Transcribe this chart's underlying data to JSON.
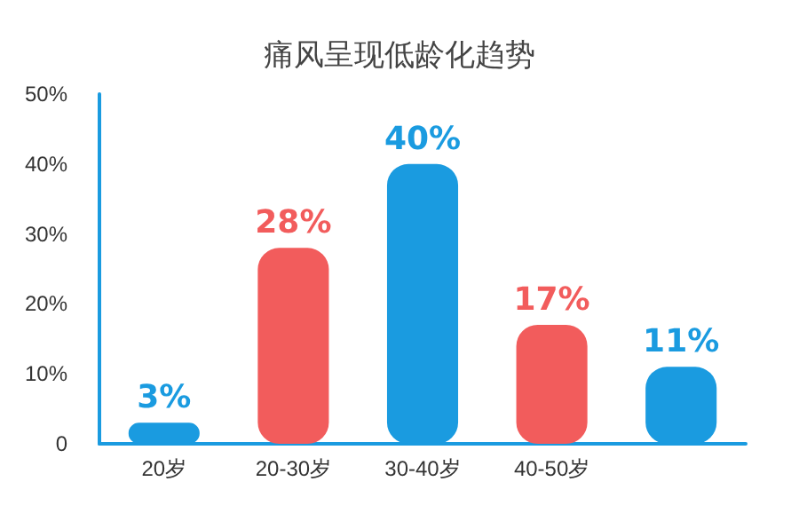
{
  "chart_data": {
    "type": "bar",
    "title": "痛风呈现低龄化趋势",
    "categories": [
      "20岁",
      "20-30岁",
      "30-40岁",
      "40-50岁",
      null
    ],
    "values": [
      3,
      28,
      40,
      17,
      11
    ],
    "colors": [
      "#1a9be0",
      "#f25c5c",
      "#1a9be0",
      "#f25c5c",
      "#1a9be0"
    ],
    "value_labels": [
      "3%",
      "28%",
      "40%",
      "17%",
      "11%"
    ],
    "ylim": [
      0,
      50
    ],
    "yticks": [
      {
        "value": 0,
        "label": "0"
      },
      {
        "value": 10,
        "label": "10%"
      },
      {
        "value": 20,
        "label": "20%"
      },
      {
        "value": 30,
        "label": "30%"
      },
      {
        "value": 40,
        "label": "40%"
      },
      {
        "value": 50,
        "label": "50%"
      }
    ],
    "grid": false
  }
}
